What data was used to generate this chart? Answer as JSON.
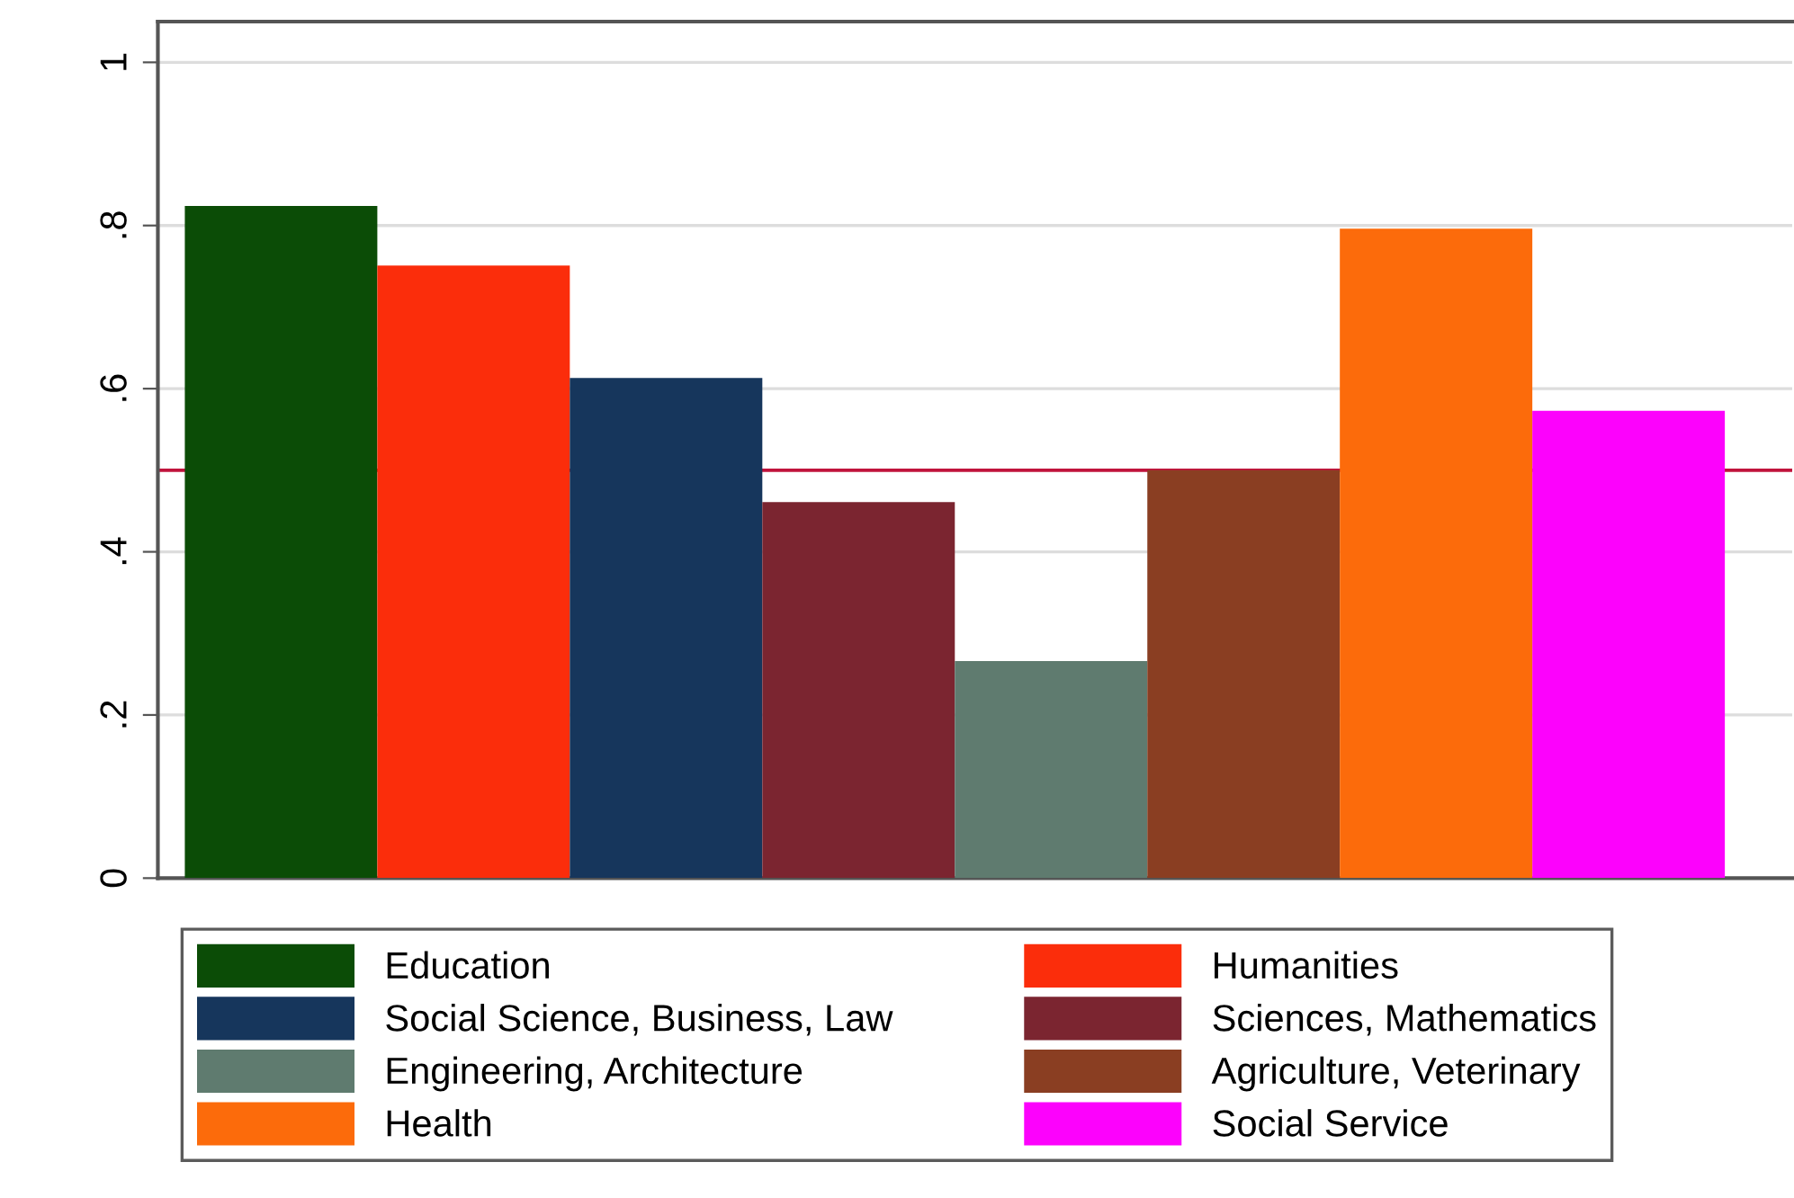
{
  "chart_data": {
    "type": "bar",
    "categories": [
      null
    ],
    "series": [
      {
        "name": "Education",
        "color": "#0b4c06",
        "values": [
          0.824
        ]
      },
      {
        "name": "Humanities",
        "color": "#fb2d0b",
        "values": [
          0.751
        ]
      },
      {
        "name": "Social Science, Business, Law",
        "color": "#16365c",
        "values": [
          0.613
        ]
      },
      {
        "name": "Sciences, Mathematics",
        "color": "#7b2530",
        "values": [
          0.461
        ]
      },
      {
        "name": "Engineering, Architecture",
        "color": "#5f7b6f",
        "values": [
          0.266
        ]
      },
      {
        "name": "Agriculture, Veterinary",
        "color": "#8a3e22",
        "values": [
          0.5
        ]
      },
      {
        "name": "Health",
        "color": "#fc6b0b",
        "values": [
          0.796
        ]
      },
      {
        "name": "Social Service",
        "color": "#fc02fc",
        "values": [
          0.573
        ]
      }
    ],
    "ylim": [
      0,
      1.05
    ],
    "yticks": [
      0,
      {
        "value": 0.2,
        "label": ".2"
      },
      {
        "value": 0.4,
        "label": ".4"
      },
      {
        "value": 0.6,
        "label": ".6"
      },
      {
        "value": 0.8,
        "label": ".8"
      },
      1
    ],
    "ref_lines": [
      {
        "axis": "y",
        "value": 0.5,
        "color": "#c0143c"
      }
    ],
    "grid": "y",
    "legend": "bottom",
    "tick_labels": "y"
  }
}
